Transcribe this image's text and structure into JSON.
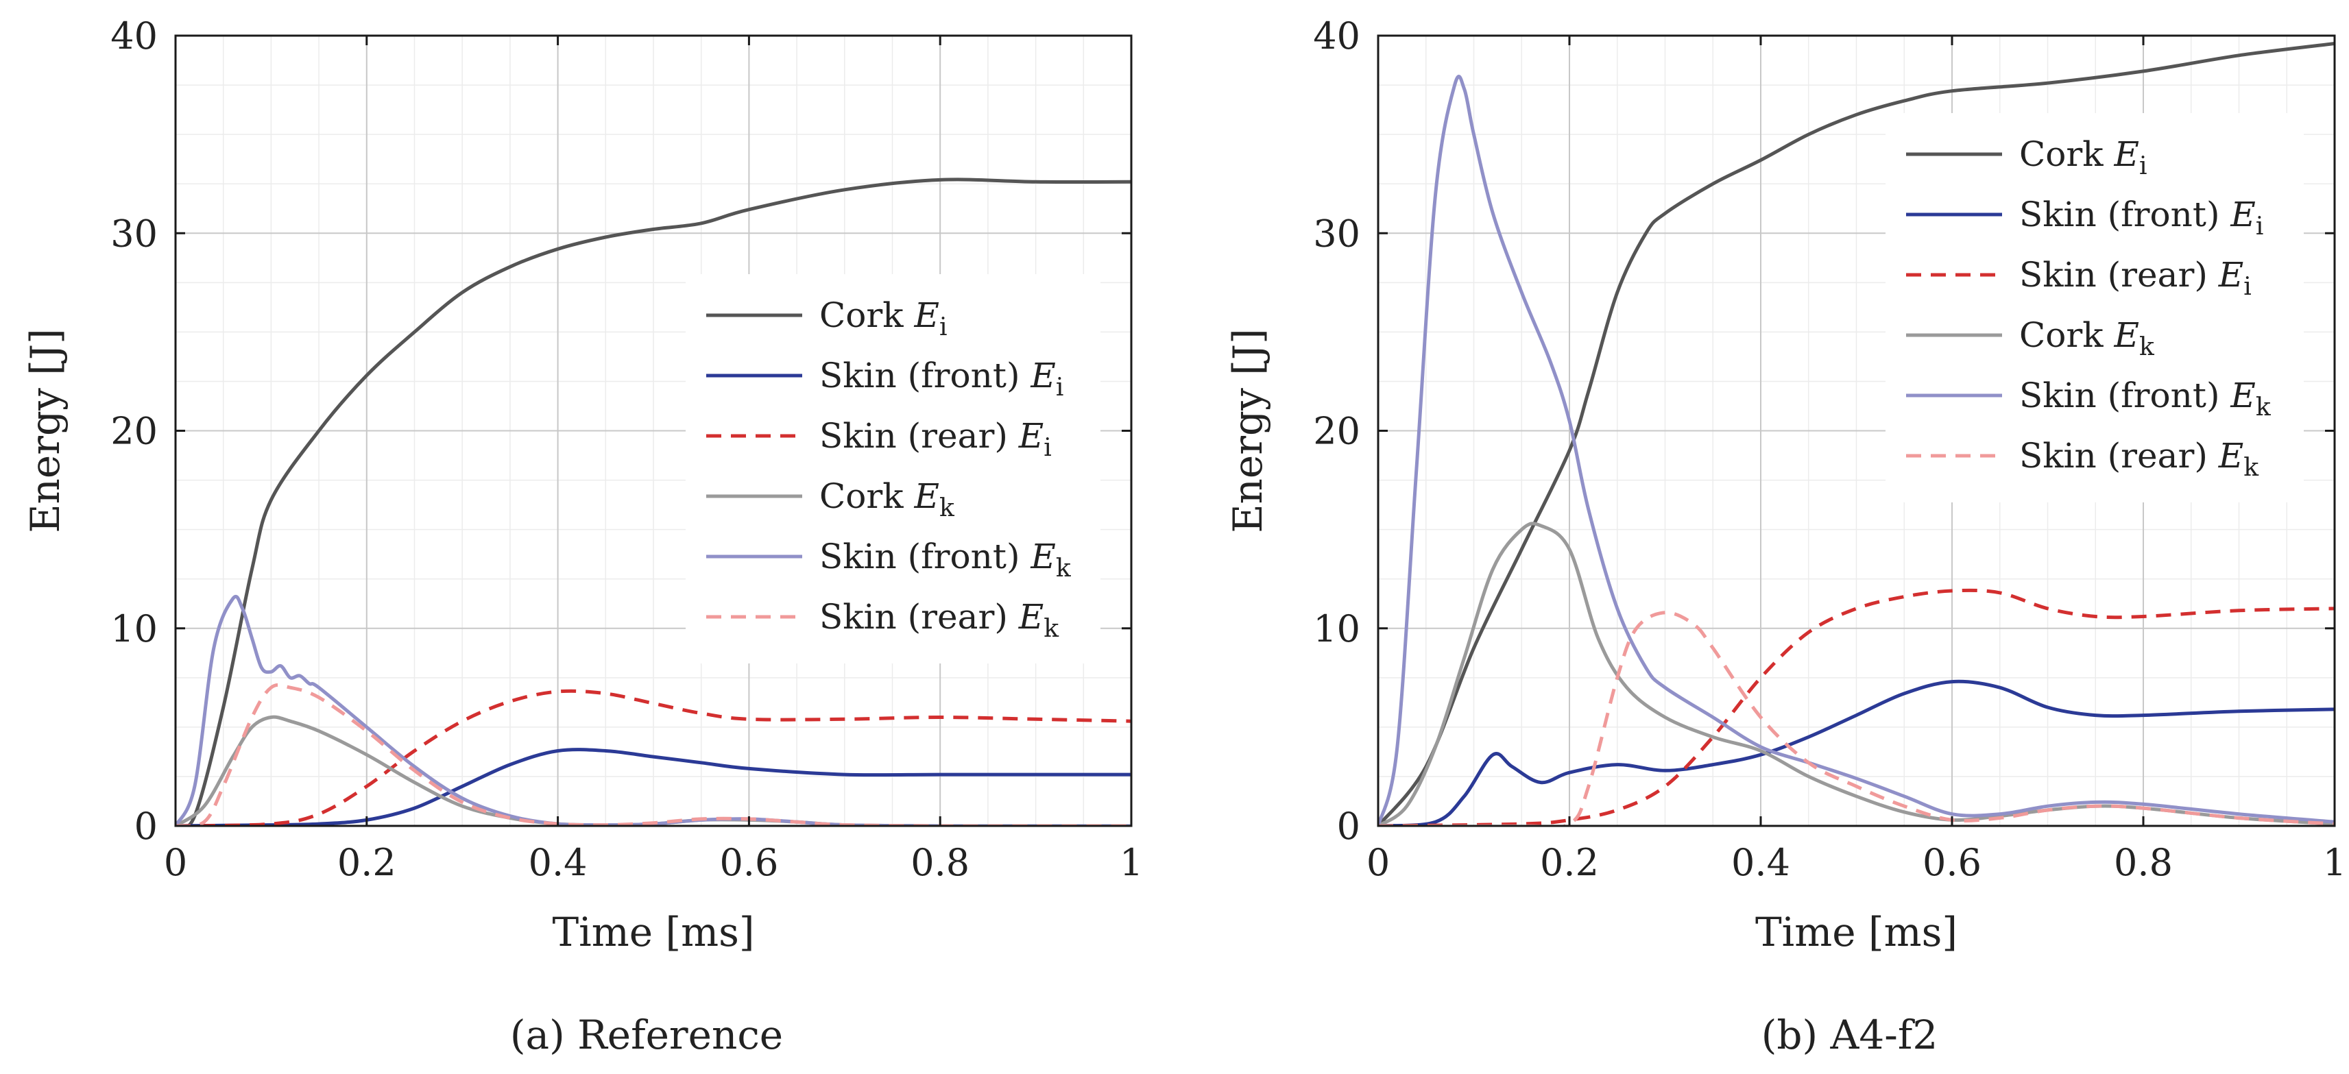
{
  "chart_data": [
    {
      "type": "line",
      "caption": "(a) Reference",
      "xlabel": "Time [ms]",
      "ylabel": "Energy [J]",
      "xlim": [
        0,
        1
      ],
      "ylim": [
        0,
        40
      ],
      "xticks": [
        "0",
        "0.2",
        "0.4",
        "0.6",
        "0.8",
        "1"
      ],
      "yticks": [
        "0",
        "10",
        "20",
        "30",
        "40"
      ],
      "grid": true,
      "legend_position": "right",
      "series": [
        {
          "name": "Cork E_i",
          "color": "#555555",
          "dash": "solid",
          "x": [
            0,
            0.02,
            0.05,
            0.08,
            0.1,
            0.15,
            0.2,
            0.25,
            0.3,
            0.35,
            0.4,
            0.45,
            0.5,
            0.55,
            0.6,
            0.7,
            0.8,
            0.9,
            1.0
          ],
          "y": [
            0,
            0.5,
            6,
            13,
            16.5,
            20,
            22.8,
            25,
            27,
            28.3,
            29.2,
            29.8,
            30.2,
            30.5,
            31.2,
            32.2,
            32.7,
            32.6,
            32.6
          ]
        },
        {
          "name": "Skin (front) E_i",
          "color": "#2b3a96",
          "dash": "solid",
          "x": [
            0,
            0.1,
            0.15,
            0.2,
            0.25,
            0.3,
            0.35,
            0.4,
            0.45,
            0.5,
            0.55,
            0.6,
            0.7,
            0.8,
            0.9,
            1.0
          ],
          "y": [
            0,
            0.05,
            0.1,
            0.3,
            0.9,
            2.0,
            3.1,
            3.8,
            3.8,
            3.5,
            3.2,
            2.9,
            2.6,
            2.6,
            2.6,
            2.6
          ]
        },
        {
          "name": "Skin (rear) E_i",
          "color": "#d32f2f",
          "dash": "dashed",
          "x": [
            0,
            0.1,
            0.15,
            0.2,
            0.25,
            0.3,
            0.35,
            0.4,
            0.45,
            0.5,
            0.55,
            0.6,
            0.7,
            0.8,
            0.9,
            1.0
          ],
          "y": [
            0,
            0.1,
            0.6,
            2.0,
            3.8,
            5.3,
            6.3,
            6.8,
            6.7,
            6.2,
            5.7,
            5.4,
            5.4,
            5.5,
            5.4,
            5.3
          ]
        },
        {
          "name": "Cork E_k",
          "color": "#9a9a9a",
          "dash": "solid",
          "x": [
            0,
            0.03,
            0.06,
            0.08,
            0.1,
            0.12,
            0.15,
            0.2,
            0.25,
            0.3,
            0.35,
            0.4,
            0.45,
            0.5,
            0.55,
            0.6,
            0.65,
            0.7,
            0.8,
            0.9,
            1.0
          ],
          "y": [
            0,
            1.0,
            3.5,
            5.0,
            5.5,
            5.3,
            4.8,
            3.6,
            2.2,
            1.0,
            0.4,
            0.1,
            0.05,
            0.1,
            0.3,
            0.3,
            0.2,
            0.05,
            0,
            0,
            0
          ]
        },
        {
          "name": "Skin (front) E_k",
          "color": "#9090c8",
          "dash": "solid",
          "x": [
            0,
            0.02,
            0.04,
            0.06,
            0.07,
            0.08,
            0.09,
            0.1,
            0.11,
            0.12,
            0.13,
            0.14,
            0.15,
            0.2,
            0.25,
            0.3,
            0.35,
            0.4,
            0.45,
            0.5,
            0.55,
            0.6,
            0.65,
            0.7,
            0.8,
            0.9,
            1.0
          ],
          "y": [
            0,
            2.0,
            9.0,
            11.5,
            11.0,
            9.5,
            8.0,
            7.8,
            8.1,
            7.5,
            7.6,
            7.2,
            7.0,
            5.0,
            3.0,
            1.4,
            0.5,
            0.1,
            0.05,
            0.1,
            0.3,
            0.35,
            0.2,
            0.05,
            0,
            0,
            0
          ]
        },
        {
          "name": "Skin (rear) E_k",
          "color": "#f09a9a",
          "dash": "dashed",
          "x": [
            0,
            0.03,
            0.05,
            0.08,
            0.1,
            0.12,
            0.15,
            0.2,
            0.25,
            0.3,
            0.35,
            0.4,
            0.45,
            0.5,
            0.55,
            0.6,
            0.65,
            0.7,
            0.8,
            0.9,
            1.0
          ],
          "y": [
            0,
            0.2,
            2.0,
            5.5,
            7.0,
            7.0,
            6.5,
            4.8,
            2.8,
            1.2,
            0.4,
            0.1,
            0.05,
            0.15,
            0.35,
            0.35,
            0.2,
            0.05,
            0,
            0,
            0
          ]
        }
      ]
    },
    {
      "type": "line",
      "caption": "(b) A4-f2",
      "xlabel": "Time [ms]",
      "ylabel": "Energy [J]",
      "xlim": [
        0,
        1
      ],
      "ylim": [
        0,
        40
      ],
      "xticks": [
        "0",
        "0.2",
        "0.4",
        "0.6",
        "0.8",
        "1"
      ],
      "yticks": [
        "0",
        "10",
        "20",
        "30",
        "40"
      ],
      "grid": true,
      "legend_position": "top-right",
      "series": [
        {
          "name": "Cork E_i",
          "color": "#555555",
          "dash": "solid",
          "x": [
            0,
            0.05,
            0.1,
            0.15,
            0.2,
            0.22,
            0.25,
            0.28,
            0.3,
            0.35,
            0.4,
            0.45,
            0.5,
            0.55,
            0.6,
            0.7,
            0.8,
            0.9,
            1.0
          ],
          "y": [
            0,
            3.0,
            9.0,
            14.0,
            19.0,
            22.0,
            27.0,
            30.0,
            31.0,
            32.5,
            33.7,
            35.0,
            36.0,
            36.7,
            37.2,
            37.6,
            38.2,
            39.0,
            39.6
          ]
        },
        {
          "name": "Skin (front) E_i",
          "color": "#2b3a96",
          "dash": "solid",
          "x": [
            0,
            0.06,
            0.09,
            0.12,
            0.14,
            0.17,
            0.2,
            0.25,
            0.3,
            0.35,
            0.4,
            0.45,
            0.5,
            0.55,
            0.6,
            0.65,
            0.7,
            0.75,
            0.8,
            0.9,
            1.0
          ],
          "y": [
            0,
            0.2,
            1.5,
            3.6,
            3.0,
            2.2,
            2.7,
            3.1,
            2.8,
            3.1,
            3.6,
            4.5,
            5.6,
            6.7,
            7.3,
            7.0,
            6.0,
            5.6,
            5.6,
            5.8,
            5.9
          ]
        },
        {
          "name": "Skin (rear) E_i",
          "color": "#d32f2f",
          "dash": "dashed",
          "x": [
            0,
            0.15,
            0.2,
            0.25,
            0.3,
            0.35,
            0.4,
            0.45,
            0.5,
            0.55,
            0.6,
            0.65,
            0.7,
            0.75,
            0.8,
            0.9,
            1.0
          ],
          "y": [
            0,
            0.1,
            0.3,
            0.8,
            2.0,
            4.5,
            7.5,
            9.8,
            11.0,
            11.6,
            11.9,
            11.8,
            11.0,
            10.6,
            10.6,
            10.9,
            11.0
          ]
        },
        {
          "name": "Cork E_k",
          "color": "#9a9a9a",
          "dash": "solid",
          "x": [
            0,
            0.03,
            0.06,
            0.09,
            0.12,
            0.15,
            0.17,
            0.2,
            0.23,
            0.26,
            0.3,
            0.35,
            0.4,
            0.45,
            0.5,
            0.55,
            0.6,
            0.65,
            0.7,
            0.75,
            0.8,
            0.9,
            1.0
          ],
          "y": [
            0,
            1.0,
            4.0,
            8.5,
            13.0,
            15.0,
            15.2,
            14.0,
            9.5,
            7.0,
            5.5,
            4.5,
            3.8,
            2.5,
            1.5,
            0.7,
            0.3,
            0.5,
            0.8,
            1.0,
            0.9,
            0.4,
            0.1
          ]
        },
        {
          "name": "Skin (front) E_k",
          "color": "#9090c8",
          "dash": "solid",
          "x": [
            0,
            0.02,
            0.04,
            0.06,
            0.08,
            0.09,
            0.1,
            0.12,
            0.15,
            0.18,
            0.2,
            0.22,
            0.25,
            0.28,
            0.3,
            0.35,
            0.4,
            0.45,
            0.5,
            0.55,
            0.6,
            0.65,
            0.7,
            0.75,
            0.8,
            0.9,
            1.0
          ],
          "y": [
            0,
            4.0,
            18.0,
            32.0,
            37.5,
            37.3,
            35.0,
            31.0,
            27.0,
            23.5,
            20.5,
            16.0,
            11.0,
            8.0,
            7.0,
            5.5,
            4.0,
            3.2,
            2.4,
            1.5,
            0.6,
            0.6,
            1.0,
            1.2,
            1.1,
            0.6,
            0.2
          ]
        },
        {
          "name": "Skin (rear) E_k",
          "color": "#f09a9a",
          "dash": "dashed",
          "x": [
            0,
            0.15,
            0.2,
            0.22,
            0.25,
            0.27,
            0.3,
            0.33,
            0.35,
            0.4,
            0.45,
            0.5,
            0.55,
            0.6,
            0.65,
            0.7,
            0.75,
            0.8,
            0.9,
            1.0
          ],
          "y": [
            0,
            0,
            0.1,
            2.0,
            7.5,
            10.0,
            10.8,
            10.2,
            9.0,
            5.5,
            3.2,
            2.0,
            1.0,
            0.3,
            0.4,
            0.8,
            1.0,
            0.9,
            0.4,
            0.1
          ]
        }
      ]
    }
  ]
}
